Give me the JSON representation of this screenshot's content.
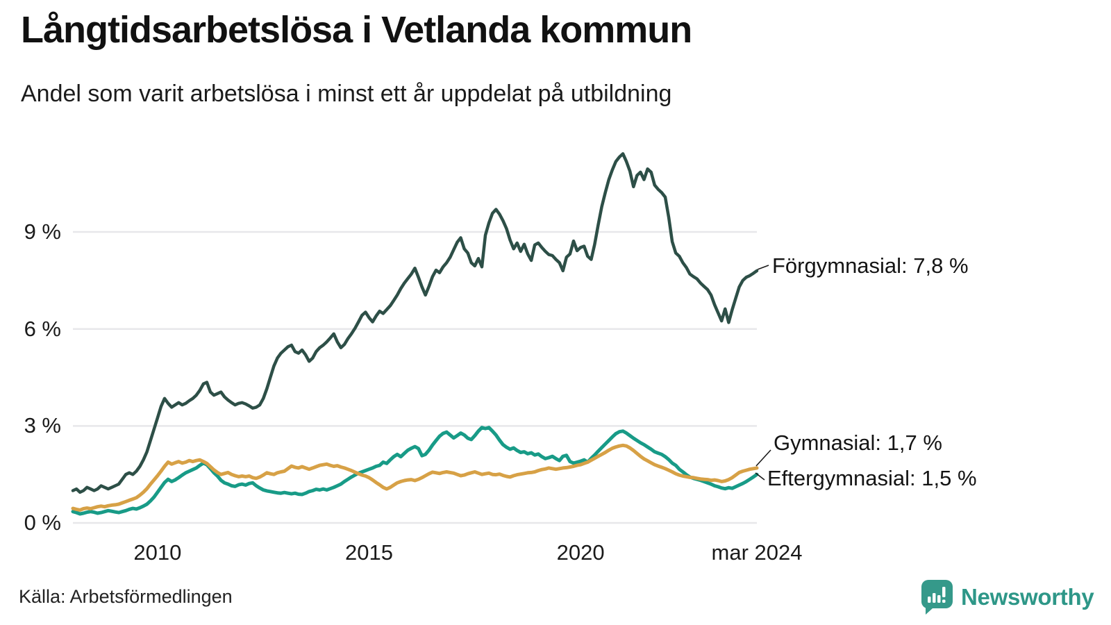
{
  "title": "Långtidsarbetslösa i Vetlanda kommun",
  "subtitle": "Andel som varit arbetslösa i minst ett år uppdelat på utbildning",
  "source": "Källa: Arbetsförmedlingen",
  "logo": {
    "text": "Newsworthy",
    "color": "#2e9788",
    "icon": "speech-bubble-bar-chart-icon",
    "icon_color": "#35998a"
  },
  "colors": {
    "grid": "#e7e7ea",
    "text": "#1a1a1a",
    "connector": "#1a1a1a",
    "background": "#ffffff"
  },
  "chart_data": {
    "type": "line",
    "title": "Långtidsarbetslösa i Vetlanda kommun",
    "subtitle": "Andel som varit arbetslösa i minst ett år uppdelat på utbildning",
    "unit": "%",
    "x_start": 2008.0,
    "x_end": 2024.1667,
    "x_months_per_point": 1,
    "ylim": [
      0,
      12
    ],
    "grid": true,
    "y_ticks": [
      {
        "label": "9 %",
        "value": 9
      },
      {
        "label": "6 %",
        "value": 6
      },
      {
        "label": "3 %",
        "value": 3
      },
      {
        "label": "0 %",
        "value": 0
      }
    ],
    "x_ticks": [
      {
        "label": "2010",
        "year": 2010.0
      },
      {
        "label": "2015",
        "year": 2015.0
      },
      {
        "label": "2020",
        "year": 2020.0
      },
      {
        "label": "mar 2024",
        "year": 2024.1667
      }
    ],
    "series": [
      {
        "name": "Förgymnasial",
        "color": "#2d4f47",
        "end_value_label": "Förgymnasial: 7,8 %",
        "end_value": 7.8,
        "values": [
          1.0,
          1.05,
          0.95,
          1.0,
          1.1,
          1.05,
          1.0,
          1.05,
          1.15,
          1.1,
          1.05,
          1.1,
          1.15,
          1.2,
          1.35,
          1.5,
          1.55,
          1.5,
          1.6,
          1.75,
          1.95,
          2.2,
          2.55,
          2.9,
          3.25,
          3.6,
          3.85,
          3.7,
          3.58,
          3.65,
          3.72,
          3.65,
          3.7,
          3.78,
          3.85,
          3.95,
          4.1,
          4.3,
          4.35,
          4.05,
          3.95,
          4.0,
          4.05,
          3.9,
          3.8,
          3.72,
          3.65,
          3.7,
          3.72,
          3.68,
          3.62,
          3.55,
          3.58,
          3.65,
          3.85,
          4.15,
          4.5,
          4.85,
          5.1,
          5.25,
          5.35,
          5.45,
          5.5,
          5.3,
          5.25,
          5.35,
          5.2,
          5.0,
          5.1,
          5.3,
          5.42,
          5.5,
          5.6,
          5.72,
          5.85,
          5.6,
          5.42,
          5.52,
          5.7,
          5.85,
          6.02,
          6.22,
          6.42,
          6.52,
          6.35,
          6.22,
          6.4,
          6.55,
          6.48,
          6.6,
          6.72,
          6.88,
          7.05,
          7.25,
          7.42,
          7.56,
          7.7,
          7.88,
          7.6,
          7.3,
          7.05,
          7.32,
          7.62,
          7.82,
          7.74,
          7.92,
          8.05,
          8.22,
          8.45,
          8.68,
          8.82,
          8.48,
          8.35,
          8.05,
          7.95,
          8.18,
          7.92,
          8.9,
          9.28,
          9.58,
          9.7,
          9.55,
          9.35,
          9.1,
          8.75,
          8.48,
          8.66,
          8.4,
          8.62,
          8.32,
          8.12,
          8.6,
          8.66,
          8.52,
          8.4,
          8.3,
          8.27,
          8.15,
          8.05,
          7.8,
          8.22,
          8.32,
          8.72,
          8.42,
          8.52,
          8.56,
          8.25,
          8.15,
          8.62,
          9.22,
          9.78,
          10.22,
          10.62,
          10.92,
          11.18,
          11.32,
          11.42,
          11.18,
          10.88,
          10.4,
          10.75,
          10.85,
          10.62,
          10.95,
          10.85,
          10.45,
          10.32,
          10.22,
          10.08,
          9.45,
          8.7,
          8.35,
          8.25,
          8.05,
          7.9,
          7.7,
          7.62,
          7.55,
          7.42,
          7.32,
          7.22,
          7.05,
          6.75,
          6.5,
          6.25,
          6.62,
          6.2,
          6.6,
          6.95,
          7.3,
          7.5,
          7.6,
          7.65,
          7.72,
          7.8
        ]
      },
      {
        "name": "Eftergymnasial",
        "color": "#189b87",
        "end_value_label": "Eftergymnasial: 1,5 %",
        "end_value": 1.5,
        "values": [
          0.35,
          0.32,
          0.28,
          0.3,
          0.33,
          0.35,
          0.33,
          0.3,
          0.32,
          0.35,
          0.38,
          0.36,
          0.34,
          0.32,
          0.35,
          0.38,
          0.42,
          0.45,
          0.43,
          0.47,
          0.52,
          0.58,
          0.68,
          0.8,
          0.95,
          1.1,
          1.25,
          1.35,
          1.28,
          1.33,
          1.4,
          1.48,
          1.55,
          1.6,
          1.65,
          1.7,
          1.78,
          1.85,
          1.8,
          1.68,
          1.55,
          1.45,
          1.32,
          1.24,
          1.2,
          1.15,
          1.13,
          1.18,
          1.2,
          1.17,
          1.22,
          1.24,
          1.15,
          1.08,
          1.02,
          0.99,
          0.97,
          0.95,
          0.93,
          0.92,
          0.94,
          0.92,
          0.9,
          0.92,
          0.89,
          0.88,
          0.92,
          0.97,
          1.0,
          1.04,
          1.02,
          1.05,
          1.02,
          1.06,
          1.1,
          1.15,
          1.2,
          1.28,
          1.35,
          1.42,
          1.48,
          1.54,
          1.58,
          1.62,
          1.66,
          1.7,
          1.75,
          1.78,
          1.88,
          1.84,
          1.95,
          2.05,
          2.12,
          2.05,
          2.15,
          2.25,
          2.31,
          2.36,
          2.3,
          2.08,
          2.12,
          2.25,
          2.41,
          2.55,
          2.68,
          2.77,
          2.81,
          2.72,
          2.63,
          2.7,
          2.78,
          2.72,
          2.62,
          2.58,
          2.7,
          2.84,
          2.95,
          2.92,
          2.95,
          2.84,
          2.72,
          2.56,
          2.42,
          2.34,
          2.28,
          2.32,
          2.24,
          2.18,
          2.2,
          2.14,
          2.17,
          2.1,
          2.13,
          2.05,
          1.99,
          2.02,
          2.06,
          1.99,
          1.93,
          2.06,
          2.09,
          1.9,
          1.85,
          1.88,
          1.91,
          1.95,
          1.88,
          2.0,
          2.1,
          2.22,
          2.33,
          2.44,
          2.55,
          2.66,
          2.76,
          2.82,
          2.84,
          2.78,
          2.7,
          2.62,
          2.55,
          2.48,
          2.42,
          2.35,
          2.28,
          2.2,
          2.16,
          2.12,
          2.05,
          1.96,
          1.85,
          1.78,
          1.66,
          1.58,
          1.49,
          1.42,
          1.38,
          1.35,
          1.32,
          1.28,
          1.24,
          1.2,
          1.15,
          1.12,
          1.08,
          1.06,
          1.09,
          1.07,
          1.12,
          1.17,
          1.22,
          1.28,
          1.35,
          1.42,
          1.5
        ]
      },
      {
        "name": "Gymnasial",
        "color": "#d7a146",
        "end_value_label": "Gymnasial: 1,7 %",
        "end_value": 1.7,
        "values": [
          0.45,
          0.42,
          0.4,
          0.44,
          0.46,
          0.44,
          0.47,
          0.5,
          0.52,
          0.5,
          0.53,
          0.55,
          0.56,
          0.58,
          0.62,
          0.66,
          0.7,
          0.74,
          0.78,
          0.86,
          0.95,
          1.06,
          1.2,
          1.33,
          1.46,
          1.6,
          1.75,
          1.88,
          1.82,
          1.86,
          1.9,
          1.85,
          1.88,
          1.93,
          1.9,
          1.93,
          1.95,
          1.9,
          1.84,
          1.74,
          1.64,
          1.56,
          1.5,
          1.53,
          1.56,
          1.5,
          1.46,
          1.43,
          1.45,
          1.43,
          1.45,
          1.4,
          1.38,
          1.42,
          1.48,
          1.55,
          1.52,
          1.5,
          1.55,
          1.58,
          1.6,
          1.68,
          1.76,
          1.72,
          1.7,
          1.74,
          1.7,
          1.66,
          1.7,
          1.74,
          1.78,
          1.8,
          1.82,
          1.78,
          1.75,
          1.77,
          1.73,
          1.7,
          1.66,
          1.62,
          1.57,
          1.52,
          1.48,
          1.45,
          1.4,
          1.33,
          1.25,
          1.18,
          1.1,
          1.05,
          1.1,
          1.17,
          1.24,
          1.28,
          1.31,
          1.33,
          1.34,
          1.31,
          1.35,
          1.4,
          1.46,
          1.52,
          1.57,
          1.55,
          1.53,
          1.56,
          1.58,
          1.56,
          1.54,
          1.5,
          1.46,
          1.48,
          1.52,
          1.55,
          1.58,
          1.54,
          1.5,
          1.52,
          1.54,
          1.5,
          1.49,
          1.51,
          1.47,
          1.44,
          1.42,
          1.46,
          1.49,
          1.51,
          1.53,
          1.55,
          1.56,
          1.58,
          1.62,
          1.65,
          1.67,
          1.7,
          1.68,
          1.66,
          1.68,
          1.7,
          1.71,
          1.73,
          1.75,
          1.78,
          1.8,
          1.84,
          1.88,
          1.94,
          2.0,
          2.06,
          2.12,
          2.18,
          2.25,
          2.31,
          2.35,
          2.38,
          2.4,
          2.38,
          2.32,
          2.24,
          2.15,
          2.06,
          1.98,
          1.92,
          1.86,
          1.8,
          1.76,
          1.72,
          1.68,
          1.63,
          1.58,
          1.52,
          1.48,
          1.45,
          1.43,
          1.41,
          1.4,
          1.38,
          1.36,
          1.35,
          1.34,
          1.32,
          1.33,
          1.31,
          1.28,
          1.3,
          1.34,
          1.4,
          1.48,
          1.56,
          1.6,
          1.63,
          1.66,
          1.68,
          1.7
        ]
      }
    ]
  }
}
